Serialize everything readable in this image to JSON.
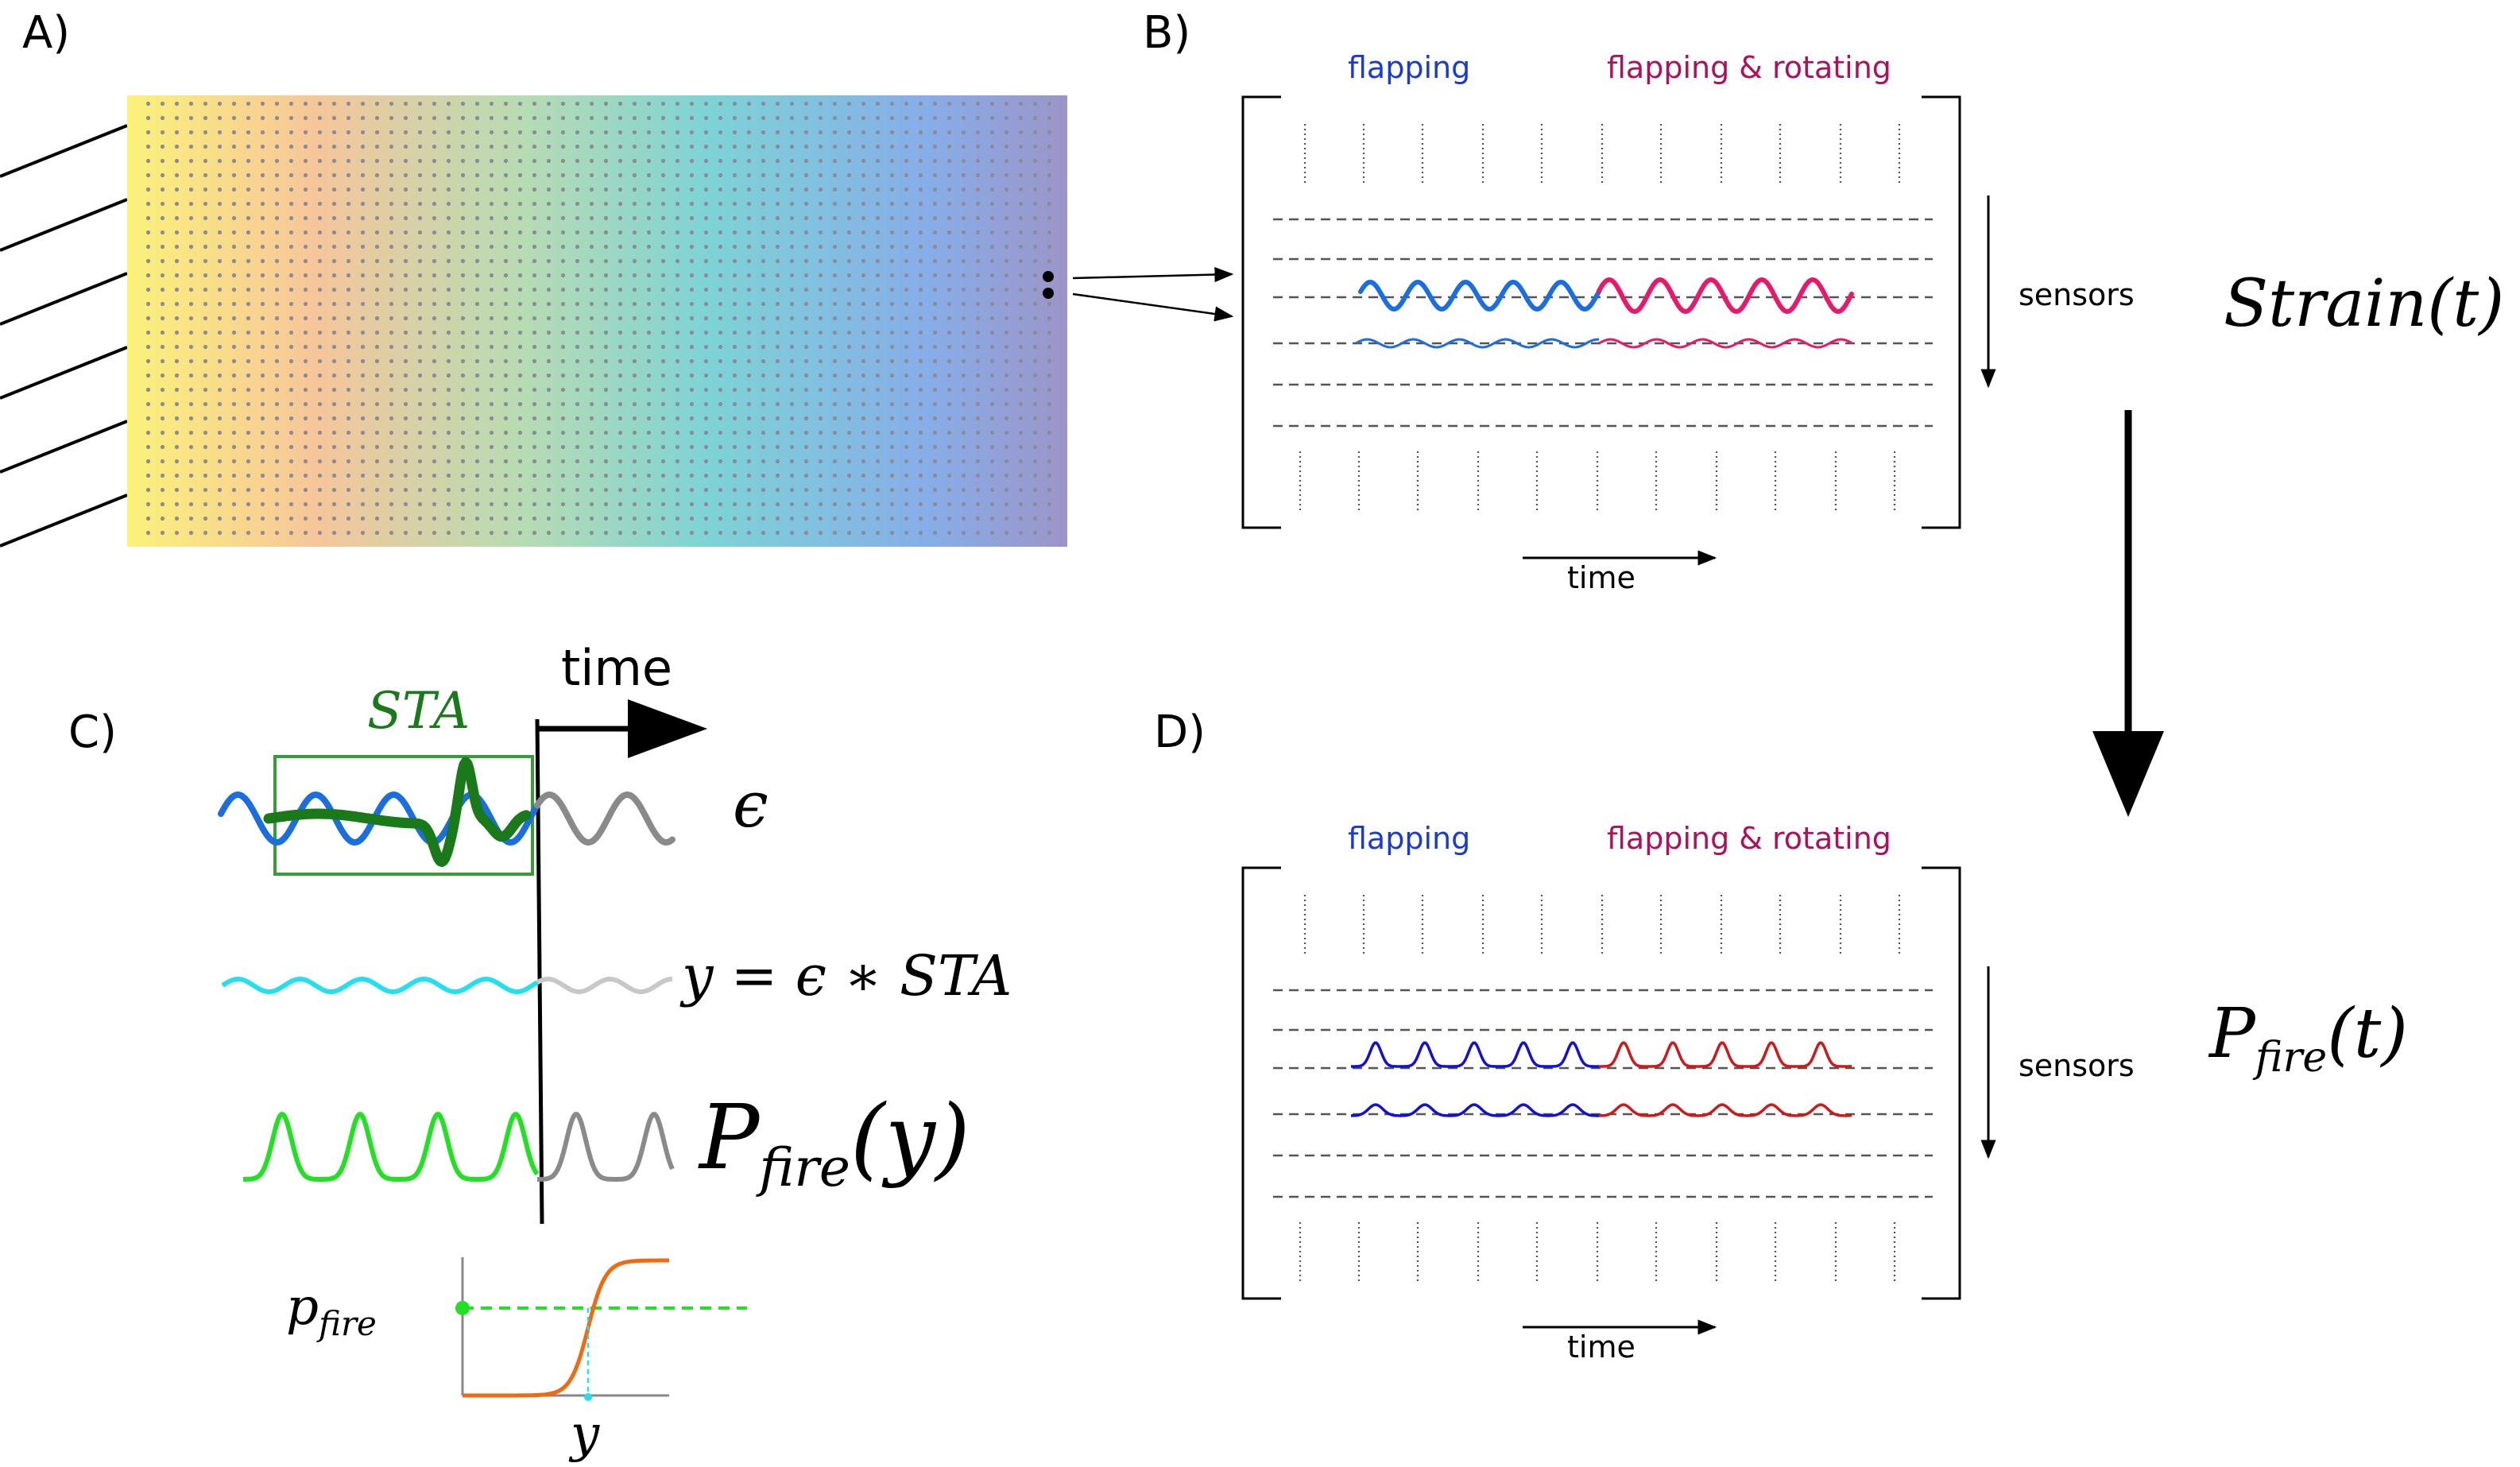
{
  "panels": {
    "a": {
      "label": "A)"
    },
    "b": {
      "label": "B)",
      "legend_flapping": "flapping",
      "legend_flapping_rotating": "flapping & rotating",
      "sensors_label": "sensors",
      "time_label": "time",
      "formula": "Strain(t)"
    },
    "c": {
      "label": "C)",
      "time_label": "time",
      "sta_label": "STA",
      "epsilon_label": "ϵ",
      "convolution_label": "y = ϵ ∗ STA",
      "pfire_y_label": "P_fire(y)",
      "pfire_axis_label": "p_fire",
      "y_axis_label": "y"
    },
    "d": {
      "label": "D)",
      "legend_flapping": "flapping",
      "legend_flapping_rotating": "flapping & rotating",
      "sensors_label": "sensors",
      "time_label": "time",
      "formula": "P_fire(t)"
    }
  },
  "colors": {
    "flapping": "#1a3ad8",
    "flapping_rotating": "#b0105a",
    "wave_blue": "#1a6ee0",
    "wave_pink": "#e8186a",
    "spike_blue": "#1010d8",
    "spike_red": "#d01818",
    "sta_green": "#1a7a1a",
    "cyan": "#22e0f0",
    "bright_green": "#22e022",
    "orange": "#f06a10",
    "grey": "#8a8a8a"
  }
}
